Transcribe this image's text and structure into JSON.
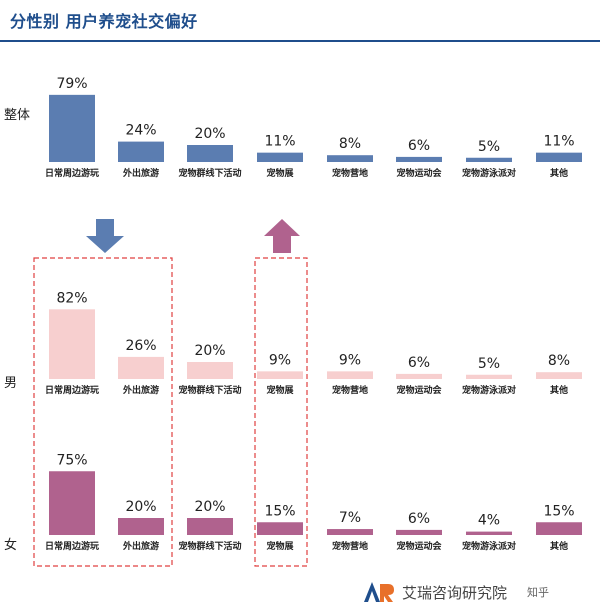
{
  "header": {
    "title": "分性别 用户养宠社交偏好"
  },
  "colors": {
    "overall": "#5b7db1",
    "male": "#f7cfcf",
    "female": "#b0628e",
    "arrow_down": "#5b7db1",
    "arrow_up": "#b0628e",
    "box_dashed": "#e04040"
  },
  "chart_data": {
    "type": "bar",
    "categories": [
      "日常周边游玩",
      "外出旅游",
      "宠物群线下活动",
      "宠物展",
      "宠物营地",
      "宠物运动会",
      "宠物游泳派对",
      "其他"
    ],
    "series": [
      {
        "name": "整体",
        "values": [
          79,
          24,
          20,
          11,
          8,
          6,
          5,
          11
        ]
      },
      {
        "name": "男",
        "values": [
          82,
          26,
          20,
          9,
          9,
          6,
          5,
          8
        ]
      },
      {
        "name": "女",
        "values": [
          75,
          20,
          20,
          15,
          7,
          6,
          4,
          15
        ]
      }
    ],
    "value_suffix": "%"
  },
  "footer": {
    "org_name": "艾瑞咨询研究院",
    "logo_text": "知乎"
  },
  "icons": [
    "arrow-down-icon",
    "arrow-up-icon",
    "ar-logo-icon"
  ]
}
